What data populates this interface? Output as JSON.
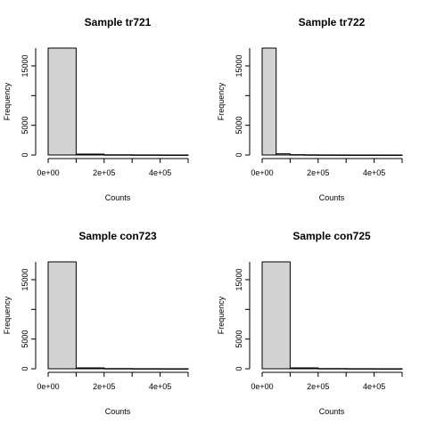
{
  "chart_data": [
    {
      "type": "bar",
      "title": "Sample tr721",
      "xlabel": "Counts",
      "ylabel": "Frequency",
      "bin_width": 100000,
      "xlim": [
        0,
        500000
      ],
      "ylim": [
        0,
        18000
      ],
      "xticks": [
        0,
        200000,
        400000
      ],
      "xtick_labels": [
        "0e+00",
        "2e+05",
        "4e+05"
      ],
      "yticks": [
        0,
        5000,
        15000
      ],
      "ytick_labels": [
        "0",
        "5000",
        "15000"
      ],
      "bins": [
        [
          0,
          100000
        ],
        [
          100000,
          200000
        ],
        [
          200000,
          300000
        ],
        [
          300000,
          400000
        ],
        [
          400000,
          500000
        ]
      ],
      "values": [
        18000,
        150,
        40,
        15,
        5
      ]
    },
    {
      "type": "bar",
      "title": "Sample tr722",
      "xlabel": "Counts",
      "ylabel": "Frequency",
      "bin_width": 50000,
      "xlim": [
        0,
        500000
      ],
      "ylim": [
        0,
        18000
      ],
      "xticks": [
        0,
        200000,
        400000
      ],
      "xtick_labels": [
        "0e+00",
        "2e+05",
        "4e+05"
      ],
      "yticks": [
        0,
        5000,
        15000
      ],
      "ytick_labels": [
        "0",
        "5000",
        "15000"
      ],
      "bins": [
        [
          0,
          50000
        ],
        [
          50000,
          100000
        ],
        [
          100000,
          150000
        ],
        [
          150000,
          200000
        ],
        [
          200000,
          250000
        ],
        [
          250000,
          300000
        ],
        [
          300000,
          350000
        ],
        [
          350000,
          400000
        ],
        [
          400000,
          450000
        ],
        [
          450000,
          500000
        ]
      ],
      "values": [
        18000,
        200,
        60,
        30,
        15,
        10,
        5,
        5,
        3,
        2
      ]
    },
    {
      "type": "bar",
      "title": "Sample con723",
      "xlabel": "Counts",
      "ylabel": "Frequency",
      "bin_width": 100000,
      "xlim": [
        0,
        500000
      ],
      "ylim": [
        0,
        18000
      ],
      "xticks": [
        0,
        200000,
        400000
      ],
      "xtick_labels": [
        "0e+00",
        "2e+05",
        "4e+05"
      ],
      "yticks": [
        0,
        5000,
        15000
      ],
      "ytick_labels": [
        "0",
        "5000",
        "15000"
      ],
      "bins": [
        [
          0,
          100000
        ],
        [
          100000,
          200000
        ],
        [
          200000,
          300000
        ],
        [
          300000,
          400000
        ],
        [
          400000,
          500000
        ]
      ],
      "values": [
        18000,
        150,
        40,
        15,
        5
      ]
    },
    {
      "type": "bar",
      "title": "Sample con725",
      "xlabel": "Counts",
      "ylabel": "Frequency",
      "bin_width": 100000,
      "xlim": [
        0,
        500000
      ],
      "ylim": [
        0,
        18000
      ],
      "xticks": [
        0,
        200000,
        400000
      ],
      "xtick_labels": [
        "0e+00",
        "2e+05",
        "4e+05"
      ],
      "yticks": [
        0,
        5000,
        15000
      ],
      "ytick_labels": [
        "0",
        "5000",
        "15000"
      ],
      "bins": [
        [
          0,
          100000
        ],
        [
          100000,
          200000
        ],
        [
          200000,
          300000
        ],
        [
          300000,
          400000
        ],
        [
          400000,
          500000
        ]
      ],
      "values": [
        18000,
        150,
        40,
        15,
        5
      ]
    }
  ],
  "colors": {
    "bar_fill": "#d3d3d3",
    "bar_stroke": "#000000",
    "axis": "#000000"
  }
}
